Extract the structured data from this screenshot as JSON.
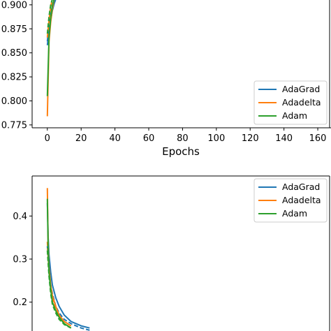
{
  "chart_data": [
    {
      "type": "line",
      "xlabel": "Epochs",
      "ylabel": "",
      "xlim": [
        -9,
        167
      ],
      "ylim": [
        0.772,
        0.905
      ],
      "xticks": [
        0,
        20,
        40,
        60,
        80,
        100,
        120,
        140,
        160
      ],
      "yticks": [
        "0.775",
        "0.800",
        "0.825",
        "0.850",
        "0.875",
        "0.900"
      ],
      "ytick_values": [
        0.775,
        0.8,
        0.825,
        0.85,
        0.875,
        0.9
      ],
      "legend_position": "lower-right",
      "colors": {
        "AdaGrad": "#1f77b4",
        "Adadelta": "#ff7f0e",
        "Adam": "#2ca02c"
      },
      "series": [
        {
          "name": "AdaGrad",
          "style": "solid",
          "x": [
            0,
            1,
            2,
            3,
            4,
            5
          ],
          "y": [
            0.858,
            0.872,
            0.884,
            0.894,
            0.901,
            0.906
          ]
        },
        {
          "name": "AdaGrad",
          "style": "dashed",
          "x": [
            0,
            1,
            2,
            3,
            4
          ],
          "y": [
            0.862,
            0.878,
            0.89,
            0.899,
            0.906
          ]
        },
        {
          "name": "Adadelta",
          "style": "solid",
          "x": [
            0,
            1,
            2,
            3,
            4
          ],
          "y": [
            0.784,
            0.862,
            0.882,
            0.896,
            0.906
          ]
        },
        {
          "name": "Adadelta",
          "style": "dashed",
          "x": [
            0,
            1,
            2,
            3
          ],
          "y": [
            0.866,
            0.884,
            0.898,
            0.906
          ]
        },
        {
          "name": "Adam",
          "style": "solid",
          "x": [
            0,
            1,
            2,
            3,
            4
          ],
          "y": [
            0.805,
            0.866,
            0.886,
            0.899,
            0.906
          ]
        },
        {
          "name": "Adam",
          "style": "dashed",
          "x": [
            0,
            1,
            2,
            3
          ],
          "y": [
            0.87,
            0.888,
            0.9,
            0.906
          ]
        }
      ],
      "legend": [
        "AdaGrad",
        "Adadelta",
        "Adam"
      ]
    },
    {
      "type": "line",
      "xlabel": "",
      "ylabel": "",
      "xlim": [
        -9,
        167
      ],
      "ylim": [
        0.12,
        0.48
      ],
      "yticks": [
        "0.2",
        "0.3",
        "0.4"
      ],
      "ytick_values": [
        0.2,
        0.3,
        0.4
      ],
      "legend_position": "top-right",
      "colors": {
        "AdaGrad": "#1f77b4",
        "Adadelta": "#ff7f0e",
        "Adam": "#2ca02c"
      },
      "series": [
        {
          "name": "AdaGrad",
          "style": "solid",
          "x": [
            0,
            0.5,
            1,
            2,
            3,
            5,
            7,
            10,
            14,
            20,
            25
          ],
          "y": [
            0.43,
            0.35,
            0.31,
            0.27,
            0.24,
            0.21,
            0.19,
            0.17,
            0.155,
            0.145,
            0.14
          ]
        },
        {
          "name": "AdaGrad",
          "style": "dashed",
          "x": [
            0,
            1,
            2,
            3,
            5,
            7,
            10,
            14,
            20,
            25
          ],
          "y": [
            0.33,
            0.28,
            0.24,
            0.22,
            0.19,
            0.175,
            0.16,
            0.15,
            0.14,
            0.135
          ]
        },
        {
          "name": "Adadelta",
          "style": "solid",
          "x": [
            0,
            0.5,
            1,
            2,
            3,
            5,
            7,
            10,
            14
          ],
          "y": [
            0.465,
            0.33,
            0.28,
            0.24,
            0.215,
            0.19,
            0.17,
            0.155,
            0.145
          ]
        },
        {
          "name": "Adadelta",
          "style": "dashed",
          "x": [
            0,
            1,
            2,
            3,
            5,
            7,
            10,
            14
          ],
          "y": [
            0.34,
            0.27,
            0.23,
            0.205,
            0.18,
            0.165,
            0.15,
            0.14
          ]
        },
        {
          "name": "Adam",
          "style": "solid",
          "x": [
            0,
            0.5,
            1,
            2,
            3,
            5,
            7,
            10,
            14
          ],
          "y": [
            0.44,
            0.32,
            0.27,
            0.23,
            0.2,
            0.18,
            0.165,
            0.15,
            0.14
          ]
        },
        {
          "name": "Adam",
          "style": "dashed",
          "x": [
            0,
            1,
            2,
            3,
            5,
            7,
            10,
            14
          ],
          "y": [
            0.32,
            0.26,
            0.22,
            0.195,
            0.175,
            0.16,
            0.148,
            0.14
          ]
        }
      ],
      "legend": [
        "AdaGrad",
        "Adadelta",
        "Adam"
      ]
    }
  ]
}
